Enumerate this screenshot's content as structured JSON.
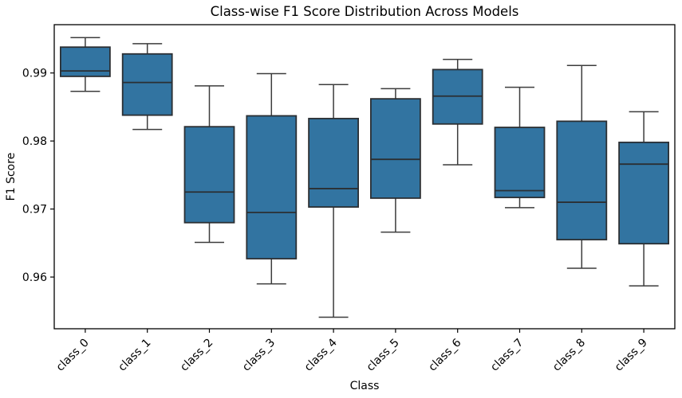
{
  "figure": {
    "title": "Class-wise F1 Score Distribution Across Models",
    "xlabel": "Class",
    "ylabel": "F1 Score"
  },
  "chart_data": {
    "type": "box",
    "title": "Class-wise F1 Score Distribution Across Models",
    "xlabel": "Class",
    "ylabel": "F1 Score",
    "categories": [
      "class_0",
      "class_1",
      "class_2",
      "class_3",
      "class_4",
      "class_5",
      "class_6",
      "class_7",
      "class_8",
      "class_9"
    ],
    "boxes": [
      {
        "label": "class_0",
        "whisker_low": 0.9873,
        "q1": 0.9895,
        "median": 0.9903,
        "q3": 0.9938,
        "whisker_high": 0.9952
      },
      {
        "label": "class_1",
        "whisker_low": 0.9817,
        "q1": 0.9838,
        "median": 0.9886,
        "q3": 0.9928,
        "whisker_high": 0.9943
      },
      {
        "label": "class_2",
        "whisker_low": 0.9651,
        "q1": 0.968,
        "median": 0.9725,
        "q3": 0.9821,
        "whisker_high": 0.9881
      },
      {
        "label": "class_3",
        "whisker_low": 0.959,
        "q1": 0.9627,
        "median": 0.9695,
        "q3": 0.9837,
        "whisker_high": 0.9899
      },
      {
        "label": "class_4",
        "whisker_low": 0.9541,
        "q1": 0.9703,
        "median": 0.973,
        "q3": 0.9833,
        "whisker_high": 0.9883
      },
      {
        "label": "class_5",
        "whisker_low": 0.9666,
        "q1": 0.9716,
        "median": 0.9773,
        "q3": 0.9862,
        "whisker_high": 0.9877
      },
      {
        "label": "class_6",
        "whisker_low": 0.9765,
        "q1": 0.9825,
        "median": 0.9866,
        "q3": 0.9905,
        "whisker_high": 0.992
      },
      {
        "label": "class_7",
        "whisker_low": 0.9702,
        "q1": 0.9717,
        "median": 0.9727,
        "q3": 0.982,
        "whisker_high": 0.9879
      },
      {
        "label": "class_8",
        "whisker_low": 0.9613,
        "q1": 0.9655,
        "median": 0.971,
        "q3": 0.9829,
        "whisker_high": 0.9911
      },
      {
        "label": "class_9",
        "whisker_low": 0.9587,
        "q1": 0.9649,
        "median": 0.9766,
        "q3": 0.9798,
        "whisker_high": 0.9843
      }
    ],
    "yticks": [
      0.96,
      0.97,
      0.98,
      0.99
    ],
    "ytick_labels": [
      "0.96",
      "0.97",
      "0.98",
      "0.99"
    ],
    "ylim": [
      0.9524,
      0.9971
    ],
    "xtick_rotation": 45,
    "grid": false,
    "legend": null,
    "colors": {
      "box_fill": "#3274a1",
      "box_edge": "#2b2f33",
      "whisker": "#3c3c3c",
      "axis": "#000000",
      "background": "#ffffff"
    }
  }
}
